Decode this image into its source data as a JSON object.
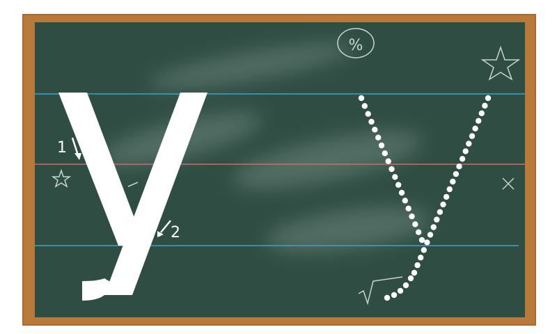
{
  "lesson": {
    "letter": "y",
    "stroke_numbers": [
      "1",
      "2"
    ]
  },
  "doodles": {
    "percent_symbol": "%"
  },
  "colors": {
    "frame": "#b87a3a",
    "board": "#2f4d43",
    "top_line": "#3aa3c8",
    "mid_line": "#d06a6a",
    "base_line": "#3aa3c8",
    "chalk": "#ffffff"
  }
}
